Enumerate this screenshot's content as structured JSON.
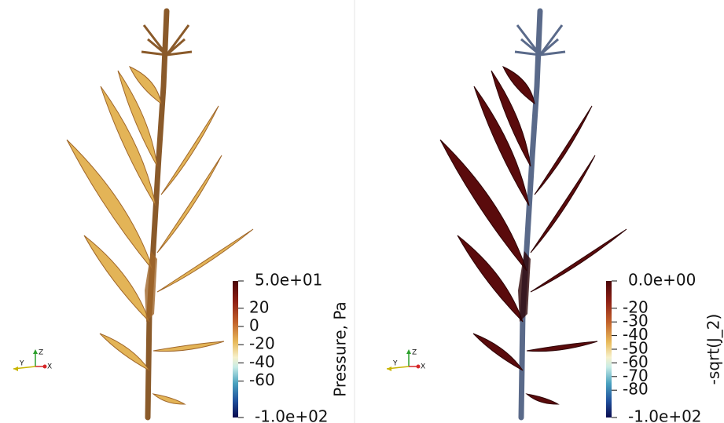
{
  "panels": [
    {
      "colorbar": {
        "title": "Pressure, Pa",
        "range": [
          {
            "value": 50,
            "label": "5.0e+01"
          },
          {
            "value": -100,
            "label": "-1.0e+02"
          }
        ],
        "ticks": [
          20,
          0,
          -20,
          -40,
          -60
        ]
      },
      "axes": {
        "x": "X",
        "y": "Y",
        "z": "Z"
      }
    },
    {
      "colorbar": {
        "title": "-sqrt(J_2)",
        "range": [
          {
            "value": 0,
            "label": "0.0e+00"
          },
          {
            "value": -100,
            "label": "-1.0e+02"
          }
        ],
        "ticks": [
          -20,
          -30,
          -40,
          -50,
          -60,
          -70,
          -80
        ]
      },
      "axes": {
        "x": "X",
        "y": "Y",
        "z": "Z"
      }
    }
  ]
}
